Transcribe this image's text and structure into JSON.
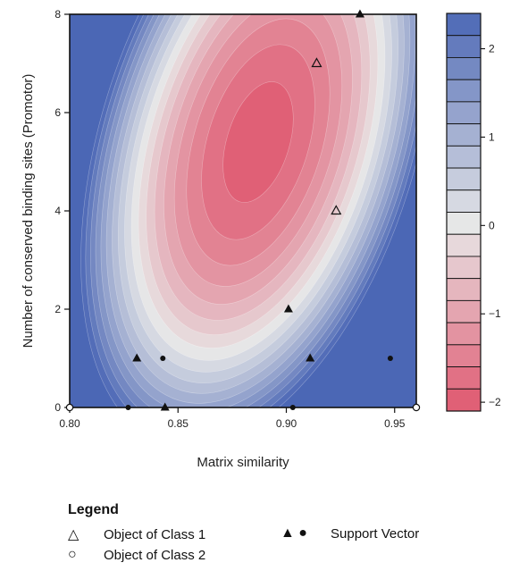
{
  "chart_data": {
    "type": "scatter",
    "title": "",
    "xlabel": "Matrix similarity",
    "ylabel": "Number of conserved binding sites (Promotor)",
    "xlim": [
      0.8,
      0.96
    ],
    "ylim": [
      0,
      8
    ],
    "x_ticks": [
      "0.80",
      "0.85",
      "0.90",
      "0.95"
    ],
    "y_ticks": [
      "0",
      "2",
      "4",
      "6",
      "8"
    ],
    "background": "filled contour of SVM decision function",
    "colorbar": {
      "range": [
        -2.1,
        2.4
      ],
      "ticks": [
        "2",
        "1",
        "0",
        "−1",
        "−2"
      ],
      "low_color": "#e0576f",
      "mid_color": "#e8e8e8",
      "high_color": "#4b67b5"
    },
    "series": [
      {
        "name": "Object of Class 1",
        "marker": "open-triangle",
        "points": [
          [
            0.914,
            7
          ],
          [
            0.923,
            4
          ]
        ]
      },
      {
        "name": "Object of Class 2",
        "marker": "open-circle",
        "points": [
          [
            0.8,
            0
          ],
          [
            0.96,
            0
          ]
        ]
      },
      {
        "name": "Support Vector",
        "marker": "filled-triangle",
        "points": [
          [
            0.934,
            8
          ],
          [
            0.901,
            2
          ],
          [
            0.831,
            1
          ],
          [
            0.911,
            1
          ],
          [
            0.844,
            0
          ]
        ]
      },
      {
        "name": "Support Vector",
        "marker": "filled-circle",
        "points": [
          [
            0.843,
            1
          ],
          [
            0.948,
            1
          ],
          [
            0.827,
            0
          ],
          [
            0.903,
            0
          ]
        ]
      }
    ]
  },
  "legend": {
    "title": "Legend",
    "class1": "Object of Class 1",
    "class2": "Object of Class 2",
    "support": "Support Vector",
    "class1_symbol": "△",
    "class2_symbol": "○",
    "support_symbol": "▲ ●"
  }
}
